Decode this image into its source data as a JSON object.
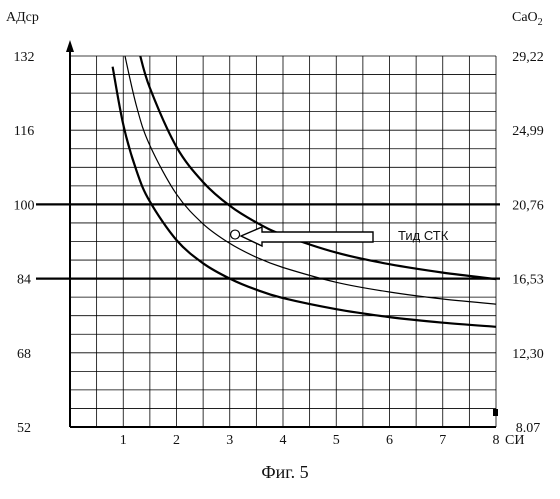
{
  "chart_data": {
    "type": "line",
    "caption": "Фиг. 5",
    "xlabel": "СИ",
    "ylabel_left": "АДср",
    "ylabel_right_base": "CaO",
    "ylabel_right_sub": "2",
    "xlim": [
      0,
      8
    ],
    "ylim": [
      52,
      132
    ],
    "x_ticks": [
      "1",
      "2",
      "3",
      "4",
      "5",
      "6",
      "7",
      "8"
    ],
    "y_ticks_left": [
      "52",
      "68",
      "84",
      "100",
      "116",
      "132"
    ],
    "y_ticks_right": [
      "8.07",
      "12,30",
      "16,53",
      "20,76",
      "24,99",
      "29,22"
    ],
    "y_tick_values": [
      52,
      68,
      84,
      100,
      116,
      132
    ],
    "reference_lines_y": [
      84,
      100
    ],
    "series": [
      {
        "x": [
          0.8,
          1.0,
          1.25,
          1.5,
          2.0,
          2.5,
          3.0,
          3.5,
          4.0,
          5.0,
          6.0,
          7.0,
          8.0
        ],
        "y": [
          129.7,
          117.2,
          107.2,
          100.6,
          92.3,
          87.3,
          84.0,
          81.6,
          79.8,
          77.4,
          75.7,
          74.5,
          73.6
        ]
      },
      {
        "x": [
          1.0,
          1.25,
          1.5,
          2.0,
          2.5,
          3.0,
          3.5,
          4.0,
          5.0,
          6.0,
          7.0,
          8.0
        ],
        "y": [
          133.7,
          121.1,
          112.7,
          102.2,
          95.8,
          91.6,
          88.6,
          86.4,
          83.2,
          81.1,
          79.6,
          78.5
        ]
      },
      {
        "x": [
          1.3,
          1.5,
          2.0,
          2.5,
          3.0,
          3.5,
          4.0,
          5.0,
          6.0,
          7.0,
          8.0
        ],
        "y": [
          132.9,
          125.1,
          112.4,
          104.8,
          99.7,
          96.1,
          93.4,
          89.6,
          87.1,
          85.3,
          83.9
        ]
      }
    ],
    "highlight_point": {
      "x": 3.1,
      "y": 93.5
    },
    "annotation": "Тид СТК"
  }
}
